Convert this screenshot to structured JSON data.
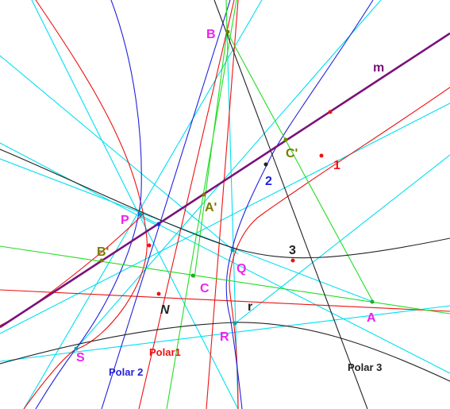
{
  "labels": {
    "B": "B",
    "m": "m",
    "C_prime": "C'",
    "one": "1",
    "two": "2",
    "A_prime": "A'",
    "P": "P",
    "B_prime": "B'",
    "Q": "Q",
    "three": "3",
    "C": "C",
    "N": "N",
    "r": "r",
    "A": "A",
    "R": "R",
    "S": "S",
    "polar1": "Polar1",
    "polar2": "Polar 2",
    "polar3": "Polar 3"
  },
  "colors": {
    "cyan": "#00e0f0",
    "red": "#ee1111",
    "blue": "#2222dd",
    "green": "#22dd22",
    "purple": "#7a117a",
    "black": "#222222",
    "magenta": "#ee22ee",
    "olive": "#7a7a00"
  }
}
